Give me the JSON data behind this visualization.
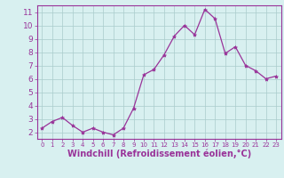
{
  "x": [
    0,
    1,
    2,
    3,
    4,
    5,
    6,
    7,
    8,
    9,
    10,
    11,
    12,
    13,
    14,
    15,
    16,
    17,
    18,
    19,
    20,
    21,
    22,
    23
  ],
  "y": [
    2.3,
    2.8,
    3.1,
    2.5,
    2.0,
    2.3,
    2.0,
    1.8,
    2.3,
    3.8,
    6.3,
    6.7,
    7.8,
    9.2,
    10.0,
    9.3,
    11.2,
    10.5,
    7.9,
    8.4,
    7.0,
    6.6,
    6.0,
    6.2
  ],
  "line_color": "#993399",
  "marker": "*",
  "marker_size": 3.0,
  "bg_color": "#d8f0f0",
  "grid_color": "#aacccc",
  "xlabel": "Windchill (Refroidissement éolien,°C)",
  "xlabel_color": "#993399",
  "tick_color": "#993399",
  "ylim": [
    1.5,
    11.5
  ],
  "xlim": [
    -0.5,
    23.5
  ],
  "yticks": [
    2,
    3,
    4,
    5,
    6,
    7,
    8,
    9,
    10,
    11
  ],
  "xticks": [
    0,
    1,
    2,
    3,
    4,
    5,
    6,
    7,
    8,
    9,
    10,
    11,
    12,
    13,
    14,
    15,
    16,
    17,
    18,
    19,
    20,
    21,
    22,
    23
  ],
  "spine_color": "#993399",
  "tick_fontsize": 6.5,
  "xlabel_fontsize": 7.0
}
